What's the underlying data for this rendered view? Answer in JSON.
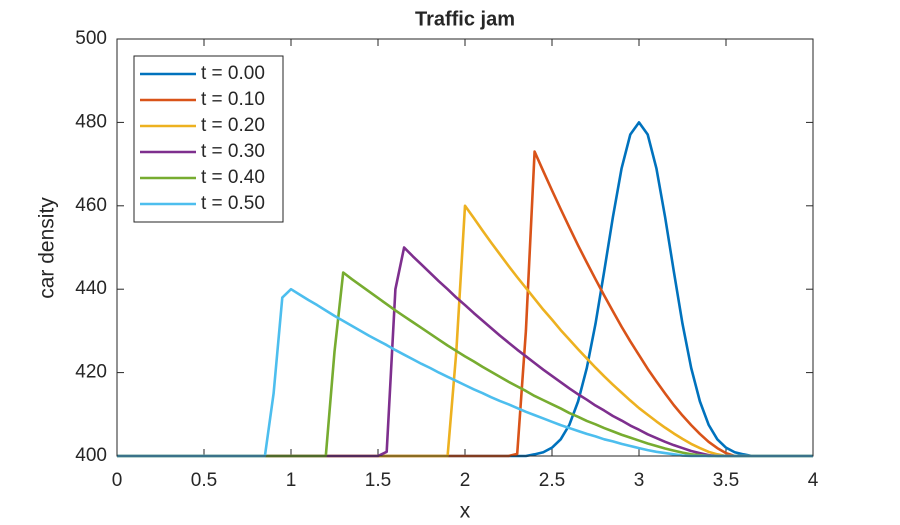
{
  "chart_data": {
    "type": "line",
    "title": "Traffic jam",
    "xlabel": "x",
    "ylabel": "car density",
    "x": [
      0,
      0.05,
      0.1,
      0.15,
      0.2,
      0.25,
      0.3,
      0.35,
      0.4,
      0.45,
      0.5,
      0.55,
      0.6,
      0.65,
      0.7,
      0.75,
      0.8,
      0.85,
      0.9,
      0.95,
      1,
      1.05,
      1.1,
      1.15,
      1.2,
      1.25,
      1.3,
      1.35,
      1.4,
      1.45,
      1.5,
      1.55,
      1.6,
      1.65,
      1.7,
      1.75,
      1.8,
      1.85,
      1.9,
      1.95,
      2,
      2.05,
      2.1,
      2.15,
      2.2,
      2.25,
      2.3,
      2.35,
      2.4,
      2.45,
      2.5,
      2.55,
      2.6,
      2.65,
      2.7,
      2.75,
      2.8,
      2.85,
      2.9,
      2.95,
      3,
      3.05,
      3.1,
      3.15,
      3.2,
      3.25,
      3.3,
      3.35,
      3.4,
      3.45,
      3.5,
      3.55,
      3.6,
      3.65,
      3.7,
      3.75,
      3.8,
      3.85,
      3.9,
      3.95,
      4
    ],
    "series": [
      {
        "name": "t = 0.00",
        "color": "#0072bd",
        "values": [
          400,
          400,
          400,
          400,
          400,
          400,
          400,
          400,
          400,
          400,
          400,
          400,
          400,
          400,
          400,
          400,
          400,
          400,
          400,
          400,
          400,
          400,
          400,
          400,
          400,
          400,
          400,
          400,
          400,
          400,
          400,
          400,
          400,
          400,
          400,
          400,
          400,
          400,
          400,
          400,
          400,
          400,
          400,
          400,
          400,
          400,
          400,
          400,
          400.4,
          400.9,
          402.0,
          404.0,
          407.5,
          413.1,
          421.1,
          431.7,
          444.3,
          457.3,
          469.0,
          477.1,
          480,
          477.1,
          469.0,
          457.3,
          444.3,
          431.7,
          421.1,
          413.1,
          407.5,
          404.0,
          402.0,
          400.9,
          400.4,
          400,
          400,
          400,
          400,
          400,
          400,
          400,
          400
        ]
      },
      {
        "name": "t = 0.10",
        "color": "#d95319",
        "values": [
          400,
          400,
          400,
          400,
          400,
          400,
          400,
          400,
          400,
          400,
          400,
          400,
          400,
          400,
          400,
          400,
          400,
          400,
          400,
          400,
          400,
          400,
          400,
          400,
          400,
          400,
          400,
          400,
          400,
          400,
          400,
          400,
          400,
          400,
          400,
          400,
          400,
          400,
          400,
          400,
          400,
          400,
          400,
          400,
          400,
          400,
          400.5,
          430,
          473,
          468.3,
          463.7,
          459.2,
          454.8,
          450.5,
          446.4,
          442.4,
          438.5,
          434.7,
          431.0,
          427.5,
          424.2,
          420.9,
          417.9,
          415.0,
          412.2,
          409.7,
          407.4,
          405.3,
          403.4,
          401.9,
          400.7,
          400,
          400,
          400,
          400,
          400,
          400,
          400,
          400,
          400,
          400
        ]
      },
      {
        "name": "t = 0.20",
        "color": "#edb120",
        "values": [
          400,
          400,
          400,
          400,
          400,
          400,
          400,
          400,
          400,
          400,
          400,
          400,
          400,
          400,
          400,
          400,
          400,
          400,
          400,
          400,
          400,
          400,
          400,
          400,
          400,
          400,
          400,
          400,
          400,
          400,
          400,
          400,
          400,
          400,
          400,
          400,
          400,
          400,
          400,
          425,
          460,
          457.1,
          454.1,
          451.2,
          448.4,
          445.6,
          442.9,
          440.3,
          437.7,
          435.1,
          432.7,
          430.2,
          427.9,
          425.6,
          423.4,
          421.2,
          419.1,
          417.1,
          415.2,
          413.3,
          411.5,
          409.9,
          408.3,
          406.8,
          405.4,
          404.1,
          402.9,
          401.9,
          401.0,
          400.4,
          400,
          400,
          400,
          400,
          400,
          400,
          400,
          400,
          400,
          400,
          400
        ]
      },
      {
        "name": "t = 0.30",
        "color": "#7e2f8e",
        "values": [
          400,
          400,
          400,
          400,
          400,
          400,
          400,
          400,
          400,
          400,
          400,
          400,
          400,
          400,
          400,
          400,
          400,
          400,
          400,
          400,
          400,
          400,
          400,
          400,
          400,
          400,
          400,
          400,
          400,
          400,
          400,
          401,
          440,
          450,
          447.9,
          445.9,
          443.9,
          441.9,
          440.0,
          438.0,
          436.2,
          434.3,
          432.5,
          430.7,
          428.9,
          427.2,
          425.5,
          423.9,
          422.3,
          420.7,
          419.2,
          417.7,
          416.2,
          414.8,
          413.5,
          412.1,
          410.9,
          409.6,
          408.5,
          407.3,
          406.3,
          405.2,
          404.3,
          403.4,
          402.6,
          401.9,
          401.2,
          400.7,
          400.2,
          400,
          400,
          400,
          400,
          400,
          400,
          400,
          400,
          400,
          400,
          400,
          400
        ]
      },
      {
        "name": "t = 0.40",
        "color": "#77ac30",
        "values": [
          400,
          400,
          400,
          400,
          400,
          400,
          400,
          400,
          400,
          400,
          400,
          400,
          400,
          400,
          400,
          400,
          400,
          400,
          400,
          400,
          400,
          400,
          400,
          400,
          400,
          425,
          444,
          442.4,
          440.9,
          439.4,
          437.9,
          436.4,
          434.9,
          433.5,
          432.1,
          430.7,
          429.3,
          427.9,
          426.5,
          425.2,
          423.9,
          422.7,
          421.4,
          420.2,
          419.0,
          417.8,
          416.7,
          415.6,
          414.4,
          413.4,
          412.4,
          411.4,
          410.3,
          409.4,
          408.4,
          407.6,
          406.7,
          405.9,
          405.1,
          404.4,
          403.7,
          403.0,
          402.4,
          401.8,
          401.3,
          400.8,
          400.4,
          400.2,
          400,
          400,
          400,
          400,
          400,
          400,
          400,
          400,
          400,
          400,
          400,
          400,
          400
        ]
      },
      {
        "name": "t = 0.50",
        "color": "#4dbeee",
        "values": [
          400,
          400,
          400,
          400,
          400,
          400,
          400,
          400,
          400,
          400,
          400,
          400,
          400,
          400,
          400,
          400,
          400,
          400,
          415,
          438,
          440,
          438.7,
          437.4,
          436.2,
          434.9,
          433.6,
          432.4,
          431.2,
          430.0,
          428.8,
          427.7,
          426.6,
          425.4,
          424.3,
          423.2,
          422.1,
          421.1,
          420.0,
          419.0,
          418.0,
          417.0,
          416.0,
          415.1,
          414.1,
          413.2,
          412.4,
          411.5,
          410.6,
          409.8,
          409.0,
          408.2,
          407.4,
          406.7,
          406.0,
          405.3,
          404.7,
          404.0,
          403.5,
          402.9,
          402.4,
          401.9,
          401.4,
          401.0,
          400.7,
          400.4,
          400.1,
          400,
          400,
          400,
          400,
          400,
          400,
          400,
          400,
          400,
          400,
          400,
          400,
          400,
          400,
          400
        ]
      }
    ],
    "xlim": [
      0,
      4
    ],
    "ylim": [
      400,
      500
    ],
    "xticks": [
      0,
      0.5,
      1,
      1.5,
      2,
      2.5,
      3,
      3.5,
      4
    ],
    "yticks": [
      400,
      420,
      440,
      460,
      480,
      500
    ],
    "legend": "northwest"
  }
}
